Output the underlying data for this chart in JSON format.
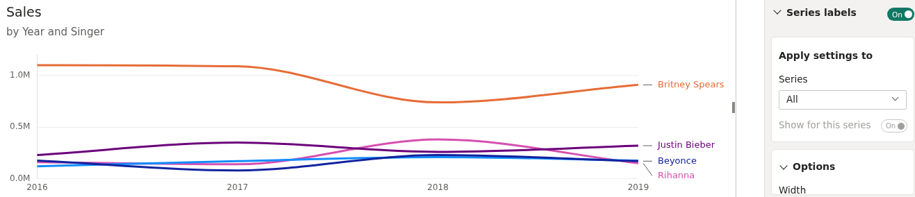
{
  "chart_data": [
    {
      "type": "line",
      "title": "Sales",
      "subtitle": "by Year and Singer",
      "categories": [
        "2016",
        "2017",
        "2018",
        "2019"
      ],
      "series": [
        {
          "name": "Britney Spears",
          "color": "#e66c37",
          "values": [
            1100000,
            1090000,
            740000,
            910000
          ]
        },
        {
          "name": "Justin Bieber",
          "color": "#6b007b",
          "values": [
            230000,
            350000,
            260000,
            320000
          ]
        },
        {
          "name": "Beyonce",
          "color": "#12239e",
          "values": [
            175000,
            80000,
            230000,
            170000
          ]
        },
        {
          "color": "#118dff",
          "values": [
            120000,
            170000,
            210000,
            175000
          ]
        },
        {
          "name": "Rihanna",
          "color": "#d64fb0",
          "values": [
            160000,
            140000,
            380000,
            150000
          ]
        }
      ],
      "ylim": [
        0,
        1200000
      ],
      "yticks": [
        {
          "value": 0,
          "label": "0.0M"
        },
        {
          "value": 500000,
          "label": "0.5M"
        },
        {
          "value": 1000000,
          "label": "1.0M"
        }
      ],
      "grid": "y",
      "legend": false,
      "marker": "none",
      "line_style": "solid"
    },
    {
      "type": "other",
      "annotations": [
        "Series labels",
        "On",
        "Apply settings to",
        "Series",
        "All",
        "Show for this series",
        "On",
        "Options",
        "Width"
      ]
    }
  ]
}
